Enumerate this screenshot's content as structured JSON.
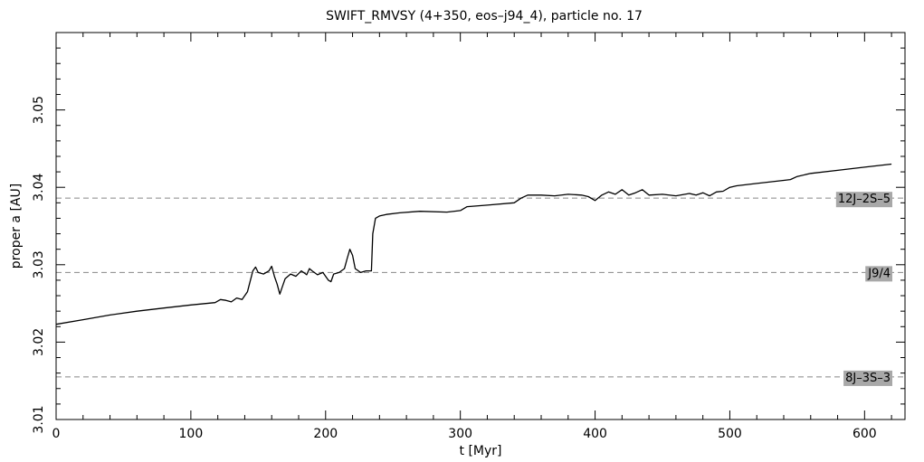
{
  "chart_data": {
    "type": "line",
    "title": "SWIFT_RMVSY (4+350, eos–j94_4), particle no. 17",
    "xlabel": "t [Myr]",
    "ylabel": "proper a [AU]",
    "xlim": [
      0,
      630
    ],
    "ylim": [
      3.01,
      3.06
    ],
    "xticks": [
      0,
      100,
      200,
      300,
      400,
      500,
      600
    ],
    "xtick_labels": [
      "0",
      "100",
      "200",
      "300",
      "400",
      "500",
      "600"
    ],
    "yticks": [
      3.01,
      3.02,
      3.03,
      3.04,
      3.05
    ],
    "ytick_labels": [
      "3.01",
      "3.02",
      "3.03",
      "3.04",
      "3.05"
    ],
    "grid": false,
    "resonances": [
      {
        "label": "12J–2S–5",
        "value": 3.0386
      },
      {
        "label": "J9/4",
        "value": 3.029
      },
      {
        "label": "8J–3S–3",
        "value": 3.0155
      }
    ],
    "series": [
      {
        "color": "#000000",
        "x": [
          0,
          20,
          40,
          60,
          80,
          100,
          118,
          122,
          126,
          130,
          134,
          138,
          142,
          146,
          148,
          150,
          154,
          158,
          160,
          162,
          164,
          166,
          168,
          170,
          174,
          178,
          182,
          186,
          188,
          190,
          194,
          198,
          202,
          204,
          206,
          210,
          214,
          216,
          218,
          220,
          222,
          226,
          230,
          234,
          235,
          237,
          240,
          245,
          255,
          270,
          290,
          300,
          305,
          320,
          340,
          345,
          350,
          360,
          370,
          380,
          390,
          395,
          400,
          405,
          410,
          415,
          420,
          425,
          430,
          435,
          440,
          450,
          460,
          470,
          475,
          480,
          485,
          490,
          495,
          500,
          505,
          520,
          540,
          545,
          550,
          560,
          580,
          600,
          620
        ],
        "y": [
          3.0223,
          3.0229,
          3.0235,
          3.024,
          3.0244,
          3.0248,
          3.0251,
          3.0255,
          3.0254,
          3.0252,
          3.0257,
          3.0255,
          3.0265,
          3.0292,
          3.0297,
          3.029,
          3.0288,
          3.0292,
          3.0298,
          3.0285,
          3.0275,
          3.0262,
          3.0272,
          3.0282,
          3.0288,
          3.0285,
          3.0292,
          3.0287,
          3.0295,
          3.0292,
          3.0287,
          3.029,
          3.028,
          3.0278,
          3.0288,
          3.029,
          3.0295,
          3.0308,
          3.032,
          3.0312,
          3.0295,
          3.029,
          3.0292,
          3.0292,
          3.034,
          3.036,
          3.0363,
          3.0365,
          3.0367,
          3.0369,
          3.0368,
          3.037,
          3.0375,
          3.0377,
          3.038,
          3.0386,
          3.039,
          3.039,
          3.0389,
          3.0391,
          3.039,
          3.0388,
          3.0383,
          3.039,
          3.0394,
          3.0391,
          3.0397,
          3.039,
          3.0393,
          3.0397,
          3.039,
          3.0391,
          3.0389,
          3.0392,
          3.039,
          3.0393,
          3.0389,
          3.0394,
          3.0395,
          3.04,
          3.0402,
          3.0405,
          3.0409,
          3.041,
          3.0414,
          3.0418,
          3.0422,
          3.0426,
          3.043
        ]
      }
    ]
  }
}
